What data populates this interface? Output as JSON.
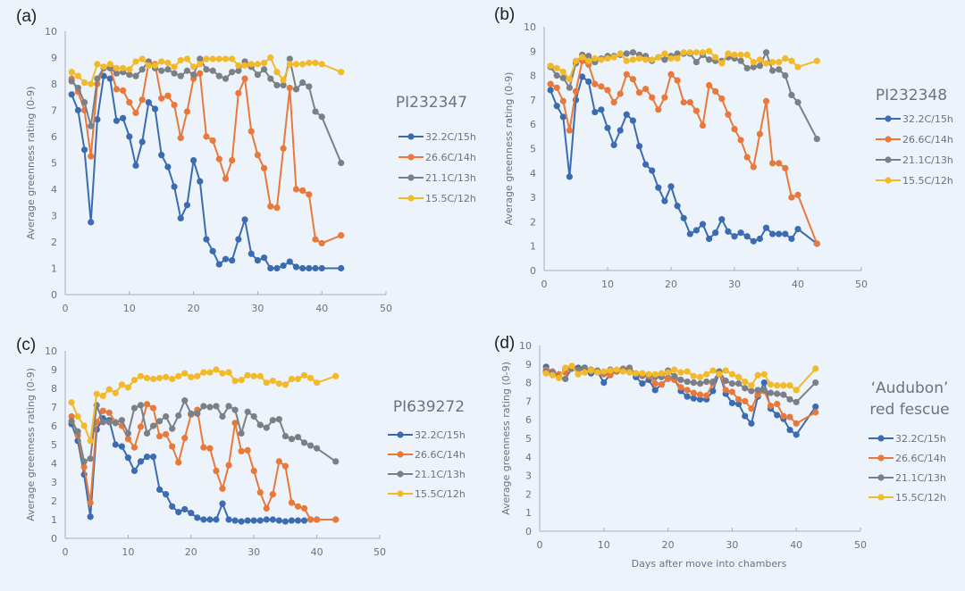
{
  "chart_data": [
    {
      "type": "line",
      "panel_label": "(a)",
      "title": "PI232347",
      "xlabel": "",
      "ylabel": "Average greenness rating (0-9)",
      "xlim": [
        0,
        50
      ],
      "ylim": [
        0,
        10
      ],
      "xticks": [
        "0",
        "10",
        "20",
        "30",
        "40",
        "50"
      ],
      "yticks": [
        "0",
        "1",
        "2",
        "3",
        "4",
        "5",
        "6",
        "7",
        "8",
        "9",
        "10"
      ],
      "legend_position": "right",
      "x": [
        1,
        2,
        3,
        4,
        5,
        6,
        7,
        8,
        9,
        10,
        11,
        12,
        13,
        14,
        15,
        16,
        17,
        18,
        19,
        20,
        21,
        22,
        23,
        24,
        25,
        26,
        27,
        28,
        29,
        30,
        31,
        32,
        33,
        34,
        35,
        36,
        37,
        38,
        39,
        40,
        43
      ],
      "series": [
        {
          "name": "32.2C/15h",
          "color": "#3b6bb0",
          "values": [
            7.6,
            7.0,
            5.5,
            2.75,
            6.65,
            8.3,
            8.2,
            6.6,
            6.7,
            6.0,
            4.9,
            5.8,
            7.3,
            7.05,
            5.3,
            4.85,
            4.1,
            2.9,
            3.4,
            5.1,
            4.3,
            2.1,
            1.65,
            1.15,
            1.35,
            1.3,
            2.1,
            2.85,
            1.55,
            1.3,
            1.4,
            1.0,
            1.0,
            1.1,
            1.25,
            1.05,
            1.0,
            1.0,
            1.0,
            1.0,
            1.0
          ]
        },
        {
          "name": "26.6C/14h",
          "color": "#e8793a",
          "values": [
            8.2,
            7.7,
            7.0,
            5.25,
            8.0,
            8.6,
            8.6,
            7.8,
            7.75,
            7.3,
            6.9,
            7.4,
            8.8,
            8.75,
            7.45,
            7.55,
            7.2,
            5.95,
            6.95,
            8.2,
            8.4,
            6.0,
            5.85,
            5.15,
            4.4,
            5.1,
            7.65,
            8.2,
            6.2,
            5.3,
            4.8,
            3.35,
            3.3,
            5.55,
            7.85,
            4.0,
            3.95,
            3.8,
            2.1,
            1.95,
            2.25
          ]
        },
        {
          "name": "21.1C/13h",
          "color": "#7b7f86",
          "values": [
            8.1,
            7.85,
            7.3,
            6.4,
            8.2,
            8.6,
            8.6,
            8.4,
            8.45,
            8.35,
            8.3,
            8.55,
            8.85,
            8.6,
            8.5,
            8.55,
            8.4,
            8.3,
            8.5,
            8.35,
            8.95,
            8.55,
            8.5,
            8.3,
            8.2,
            8.45,
            8.5,
            8.85,
            8.65,
            8.35,
            8.55,
            8.2,
            7.95,
            7.95,
            8.95,
            7.8,
            8.05,
            7.9,
            6.95,
            6.75,
            5.0
          ]
        },
        {
          "name": "15.5C/12h",
          "color": "#f2b928",
          "values": [
            8.45,
            8.3,
            8.05,
            8.0,
            8.75,
            8.65,
            8.75,
            8.6,
            8.6,
            8.55,
            8.85,
            8.95,
            8.7,
            8.7,
            8.85,
            8.8,
            8.65,
            8.9,
            8.95,
            8.65,
            8.75,
            8.95,
            8.95,
            8.95,
            8.95,
            8.95,
            8.7,
            8.7,
            8.75,
            8.75,
            8.8,
            9.0,
            8.45,
            8.15,
            8.75,
            8.75,
            8.75,
            8.8,
            8.8,
            8.75,
            8.45
          ]
        }
      ]
    },
    {
      "type": "line",
      "panel_label": "(b)",
      "title": "PI232348",
      "xlabel": "",
      "ylabel": "Average greenness rating (0-9)",
      "xlim": [
        0,
        50
      ],
      "ylim": [
        0,
        10
      ],
      "xticks": [
        "0",
        "10",
        "20",
        "30",
        "40",
        "50"
      ],
      "yticks": [
        "0",
        "1",
        "2",
        "3",
        "4",
        "5",
        "6",
        "7",
        "8",
        "9",
        "10"
      ],
      "legend_position": "right",
      "x": [
        1,
        2,
        3,
        4,
        5,
        6,
        7,
        8,
        9,
        10,
        11,
        12,
        13,
        14,
        15,
        16,
        17,
        18,
        19,
        20,
        21,
        22,
        23,
        24,
        25,
        26,
        27,
        28,
        29,
        30,
        31,
        32,
        33,
        34,
        35,
        36,
        37,
        38,
        39,
        40,
        43
      ],
      "series": [
        {
          "name": "32.2C/15h",
          "color": "#3b6bb0",
          "values": [
            7.4,
            6.75,
            6.3,
            3.85,
            7.0,
            7.95,
            7.75,
            6.5,
            6.6,
            5.85,
            5.15,
            5.75,
            6.4,
            6.15,
            5.1,
            4.35,
            4.1,
            3.4,
            2.85,
            3.45,
            2.65,
            2.15,
            1.5,
            1.65,
            1.9,
            1.3,
            1.55,
            2.1,
            1.6,
            1.4,
            1.55,
            1.4,
            1.2,
            1.3,
            1.75,
            1.5,
            1.5,
            1.5,
            1.3,
            1.7,
            1.1
          ]
        },
        {
          "name": "26.6C/14h",
          "color": "#e8793a",
          "values": [
            7.65,
            7.5,
            6.95,
            5.75,
            7.35,
            8.6,
            8.45,
            7.65,
            7.55,
            7.4,
            6.9,
            7.25,
            8.05,
            7.85,
            7.3,
            7.45,
            7.1,
            6.6,
            7.1,
            8.05,
            7.8,
            6.9,
            6.9,
            6.55,
            5.95,
            7.6,
            7.35,
            7.05,
            6.4,
            5.8,
            5.35,
            4.65,
            4.25,
            5.6,
            6.95,
            4.4,
            4.4,
            4.2,
            3.0,
            3.1,
            1.1
          ]
        },
        {
          "name": "21.1C/13h",
          "color": "#7b7f86",
          "values": [
            8.35,
            8.0,
            7.9,
            7.5,
            8.5,
            8.85,
            8.8,
            8.55,
            8.7,
            8.8,
            8.8,
            8.85,
            8.9,
            8.95,
            8.85,
            8.8,
            8.6,
            8.75,
            8.65,
            8.8,
            8.9,
            8.9,
            8.9,
            8.55,
            8.85,
            8.65,
            8.6,
            8.6,
            8.75,
            8.7,
            8.6,
            8.3,
            8.35,
            8.4,
            8.95,
            8.2,
            8.25,
            8.0,
            7.2,
            6.9,
            5.4
          ]
        },
        {
          "name": "15.5C/12h",
          "color": "#f2b928",
          "values": [
            8.4,
            8.3,
            8.15,
            7.85,
            8.6,
            8.75,
            8.6,
            8.7,
            8.65,
            8.7,
            8.75,
            8.9,
            8.6,
            8.65,
            8.7,
            8.65,
            8.65,
            8.75,
            8.9,
            8.7,
            8.7,
            8.95,
            8.95,
            8.95,
            8.95,
            9.0,
            8.75,
            8.5,
            8.9,
            8.85,
            8.85,
            8.85,
            8.55,
            8.65,
            8.5,
            8.55,
            8.55,
            8.7,
            8.6,
            8.35,
            8.6
          ]
        }
      ]
    },
    {
      "type": "line",
      "panel_label": "(c)",
      "title": "PI639272",
      "xlabel": "",
      "ylabel": "Average greenness rating (0-9)",
      "xlim": [
        0,
        50
      ],
      "ylim": [
        0,
        10
      ],
      "xticks": [
        "0",
        "10",
        "20",
        "30",
        "40",
        "50"
      ],
      "yticks": [
        "0",
        "1",
        "2",
        "3",
        "4",
        "5",
        "6",
        "7",
        "8",
        "9",
        "10"
      ],
      "legend_position": "right",
      "x": [
        1,
        2,
        3,
        4,
        5,
        6,
        7,
        8,
        9,
        10,
        11,
        12,
        13,
        14,
        15,
        16,
        17,
        18,
        19,
        20,
        21,
        22,
        23,
        24,
        25,
        26,
        27,
        28,
        29,
        30,
        31,
        32,
        33,
        34,
        35,
        36,
        37,
        38,
        39,
        40,
        43
      ],
      "series": [
        {
          "name": "32.2C/15h",
          "color": "#3b6bb0",
          "values": [
            6.1,
            5.2,
            3.4,
            1.15,
            5.8,
            6.4,
            6.3,
            5.0,
            4.9,
            4.3,
            3.6,
            4.1,
            4.35,
            4.35,
            2.6,
            2.35,
            1.7,
            1.4,
            1.55,
            1.35,
            1.1,
            1.0,
            1.0,
            1.0,
            1.85,
            1.0,
            0.95,
            0.9,
            0.95,
            0.95,
            0.95,
            1.0,
            1.0,
            0.95,
            0.9,
            0.95,
            0.95,
            0.95,
            1.0,
            1.0,
            1.0
          ]
        },
        {
          "name": "26.6C/14h",
          "color": "#e8793a",
          "values": [
            6.5,
            5.5,
            3.8,
            1.9,
            6.2,
            6.8,
            6.7,
            6.2,
            6.0,
            5.3,
            4.85,
            5.95,
            7.15,
            6.95,
            5.45,
            5.55,
            4.9,
            4.05,
            5.35,
            6.6,
            6.85,
            4.85,
            4.8,
            3.6,
            2.65,
            3.9,
            6.15,
            4.65,
            4.7,
            3.6,
            2.45,
            1.6,
            2.35,
            4.1,
            3.85,
            1.9,
            1.7,
            1.6,
            1.0,
            1.0,
            1.0
          ]
        },
        {
          "name": "21.1C/13h",
          "color": "#7b7f86",
          "values": [
            6.25,
            5.7,
            4.1,
            4.25,
            7.1,
            6.2,
            6.2,
            6.15,
            6.3,
            5.6,
            6.95,
            7.1,
            5.6,
            6.0,
            6.25,
            6.5,
            5.85,
            6.55,
            7.35,
            6.65,
            6.65,
            7.05,
            7.0,
            7.05,
            6.5,
            7.05,
            6.85,
            5.6,
            6.75,
            6.5,
            6.05,
            5.9,
            6.3,
            6.35,
            5.45,
            5.3,
            5.4,
            5.1,
            4.95,
            4.8,
            4.1
          ]
        },
        {
          "name": "15.5C/12h",
          "color": "#f2b928",
          "values": [
            7.25,
            6.5,
            6.0,
            5.2,
            7.7,
            7.6,
            7.95,
            7.75,
            8.2,
            8.05,
            8.45,
            8.65,
            8.55,
            8.5,
            8.55,
            8.6,
            8.5,
            8.65,
            8.8,
            8.6,
            8.65,
            8.85,
            8.85,
            9.0,
            8.8,
            8.85,
            8.4,
            8.45,
            8.7,
            8.65,
            8.65,
            8.3,
            8.4,
            8.25,
            8.2,
            8.5,
            8.5,
            8.7,
            8.55,
            8.3,
            8.65
          ]
        }
      ]
    },
    {
      "type": "line",
      "panel_label": "(d)",
      "title": "‘Audubon’ red fescue",
      "title_lines": [
        "‘Audubon’",
        "red fescue"
      ],
      "xlabel": "Days after move into chambers",
      "ylabel": "Average greenness rating (0-9)",
      "xlim": [
        0,
        50
      ],
      "ylim": [
        0,
        10
      ],
      "xticks": [
        "0",
        "10",
        "20",
        "30",
        "40",
        "50"
      ],
      "yticks": [
        "0",
        "1",
        "2",
        "3",
        "4",
        "5",
        "6",
        "7",
        "8",
        "9",
        "10"
      ],
      "legend_position": "right",
      "x": [
        1,
        2,
        3,
        4,
        5,
        6,
        7,
        8,
        9,
        10,
        11,
        12,
        13,
        14,
        15,
        16,
        17,
        18,
        19,
        20,
        21,
        22,
        23,
        24,
        25,
        26,
        27,
        28,
        29,
        30,
        31,
        32,
        33,
        34,
        35,
        36,
        37,
        38,
        39,
        40,
        43
      ],
      "series": [
        {
          "name": "32.2C/15h",
          "color": "#3b6bb0",
          "values": [
            8.85,
            8.5,
            8.4,
            8.7,
            8.85,
            8.8,
            8.8,
            8.5,
            8.6,
            8.0,
            8.45,
            8.6,
            8.75,
            8.75,
            8.3,
            7.95,
            8.15,
            7.6,
            7.9,
            8.25,
            8.2,
            7.55,
            7.25,
            7.15,
            7.1,
            7.1,
            7.55,
            8.55,
            7.4,
            6.9,
            6.85,
            6.2,
            5.8,
            7.25,
            8.0,
            6.6,
            6.25,
            6.05,
            5.45,
            5.2,
            6.7
          ]
        },
        {
          "name": "26.6C/14h",
          "color": "#e8793a",
          "values": [
            8.7,
            8.6,
            8.45,
            8.55,
            8.8,
            8.7,
            8.7,
            8.7,
            8.6,
            8.45,
            8.4,
            8.6,
            8.75,
            8.6,
            8.5,
            8.35,
            8.35,
            7.95,
            7.9,
            8.2,
            8.15,
            7.75,
            7.6,
            7.45,
            7.35,
            7.3,
            7.95,
            8.6,
            7.6,
            7.5,
            7.1,
            7.0,
            6.6,
            7.35,
            7.55,
            6.75,
            6.85,
            6.2,
            6.15,
            5.8,
            6.4
          ]
        },
        {
          "name": "21.1C/13h",
          "color": "#7b7f86",
          "values": [
            8.6,
            8.55,
            8.3,
            8.2,
            8.75,
            8.7,
            8.75,
            8.6,
            8.65,
            8.55,
            8.7,
            8.65,
            8.7,
            8.8,
            8.45,
            8.4,
            8.4,
            8.3,
            8.3,
            8.65,
            8.35,
            8.15,
            8.05,
            8.0,
            7.95,
            8.05,
            8.05,
            8.6,
            8.1,
            7.95,
            7.95,
            7.7,
            7.55,
            7.6,
            7.6,
            7.45,
            7.4,
            7.35,
            7.1,
            6.95,
            8.0
          ]
        },
        {
          "name": "15.5C/12h",
          "color": "#f2b928",
          "values": [
            8.5,
            8.4,
            8.25,
            8.8,
            8.9,
            8.45,
            8.55,
            8.65,
            8.55,
            8.6,
            8.65,
            8.7,
            8.6,
            8.55,
            8.5,
            8.5,
            8.45,
            8.45,
            8.5,
            8.55,
            8.7,
            8.55,
            8.6,
            8.35,
            8.3,
            8.45,
            8.65,
            8.45,
            8.65,
            8.45,
            8.3,
            8.05,
            7.85,
            8.4,
            8.45,
            7.9,
            7.85,
            7.85,
            7.85,
            7.6,
            8.75
          ]
        }
      ]
    }
  ]
}
